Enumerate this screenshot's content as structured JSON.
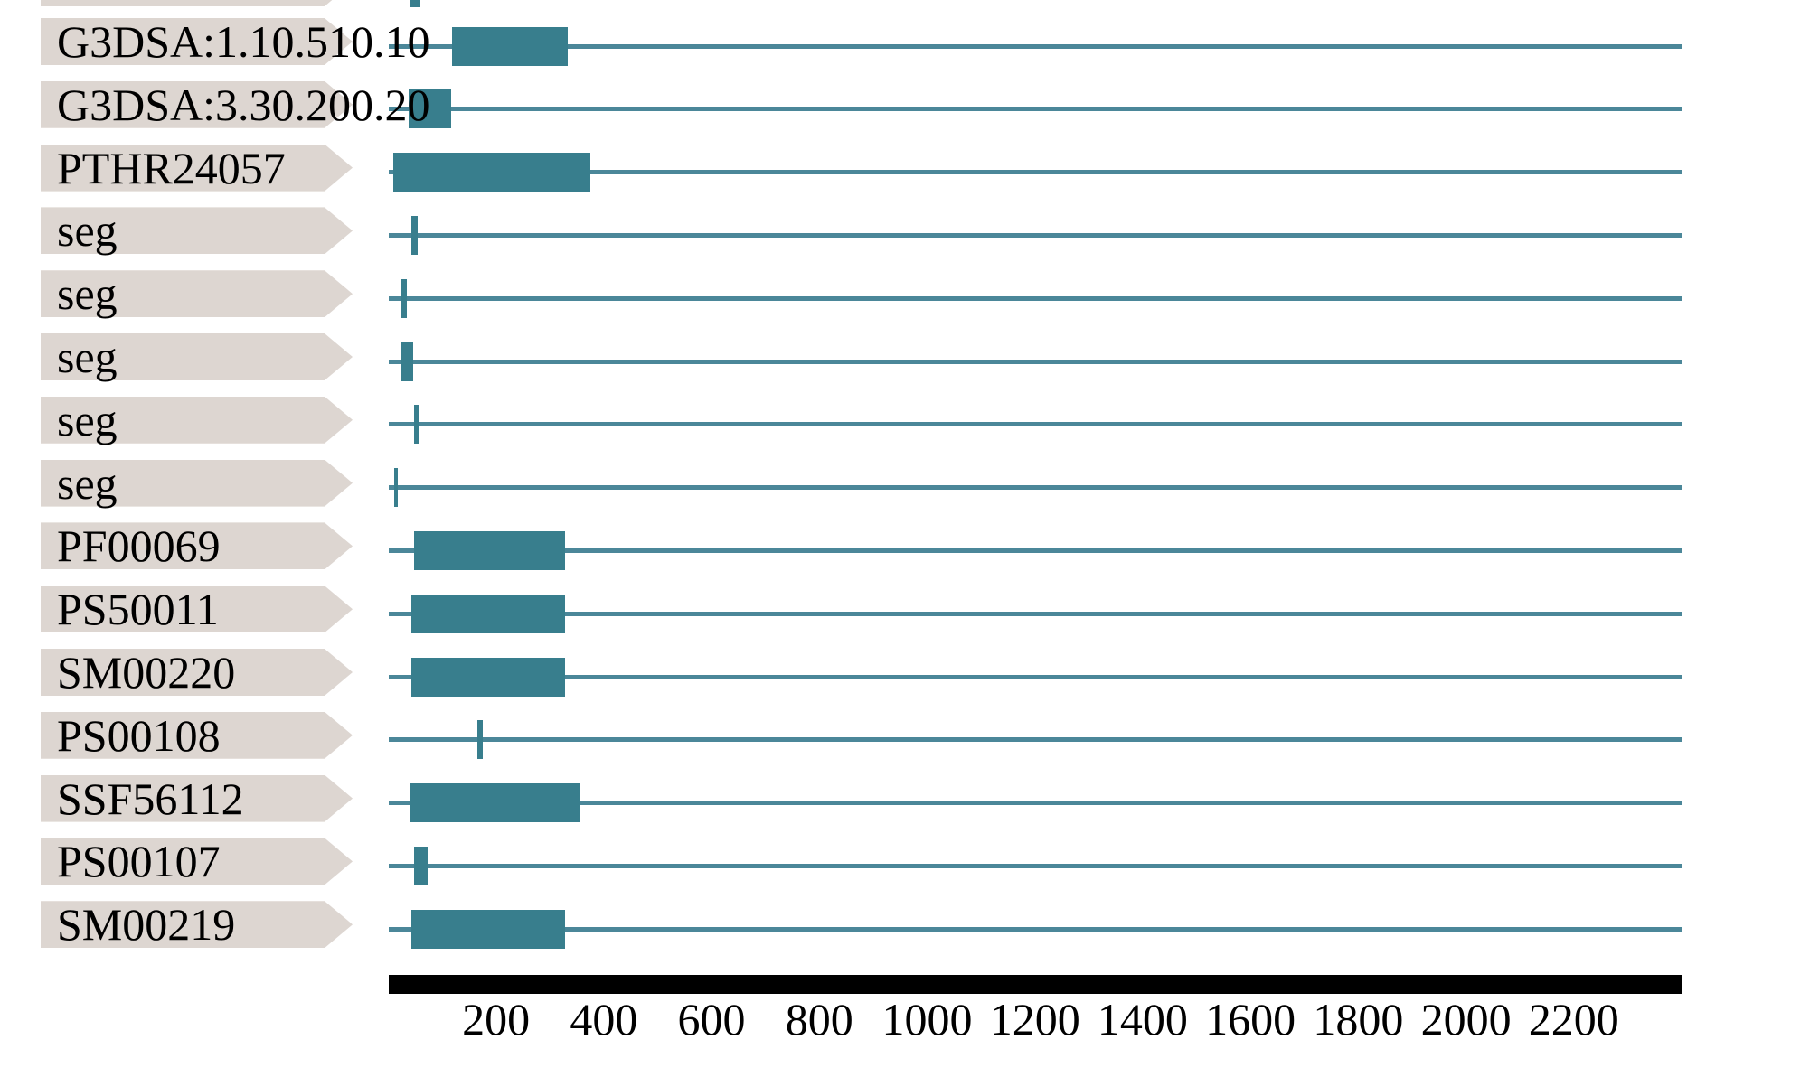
{
  "colors": {
    "background": "#ffffff",
    "feature-fill": "#387e8d",
    "line": "#4b8799",
    "label-bg": "#ddd6d1",
    "axis-bar": "#000000",
    "text": "#000000"
  },
  "chart_data": {
    "type": "bar",
    "variant": "protein-domain-architecture-tracks",
    "title": "",
    "xlabel": "",
    "legend": null,
    "grid": false,
    "x_axis": {
      "range": [
        1,
        2400
      ],
      "ticks": [
        200,
        400,
        600,
        800,
        1000,
        1200,
        1400,
        1600,
        1800,
        2000,
        2200
      ]
    },
    "rows": [
      {
        "label": "",
        "clipped": true,
        "features": [
          {
            "start": 40,
            "end": 60
          }
        ]
      },
      {
        "label": "G3DSA:1.10.510.10",
        "clipped": false,
        "features": [
          {
            "start": 118,
            "end": 333
          }
        ]
      },
      {
        "label": "G3DSA:3.30.200.20",
        "clipped": false,
        "features": [
          {
            "start": 38,
            "end": 117
          }
        ]
      },
      {
        "label": "PTHR24057",
        "clipped": false,
        "features": [
          {
            "start": 9,
            "end": 375
          }
        ]
      },
      {
        "label": "seg",
        "clipped": false,
        "features": [
          {
            "start": 43,
            "end": 55
          }
        ]
      },
      {
        "label": "seg",
        "clipped": false,
        "features": [
          {
            "start": 23,
            "end": 35
          }
        ]
      },
      {
        "label": "seg",
        "clipped": false,
        "features": [
          {
            "start": 24,
            "end": 46
          }
        ]
      },
      {
        "label": "seg",
        "clipped": false,
        "features": [
          {
            "start": 48,
            "end": 56
          }
        ]
      },
      {
        "label": "seg",
        "clipped": false,
        "features": [
          {
            "start": 11,
            "end": 18
          }
        ]
      },
      {
        "label": "PF00069",
        "clipped": false,
        "features": [
          {
            "start": 48,
            "end": 328
          }
        ]
      },
      {
        "label": "PS50011",
        "clipped": false,
        "features": [
          {
            "start": 43,
            "end": 328
          }
        ]
      },
      {
        "label": "SM00220",
        "clipped": false,
        "features": [
          {
            "start": 43,
            "end": 328
          }
        ]
      },
      {
        "label": "PS00108",
        "clipped": false,
        "features": [
          {
            "start": 165,
            "end": 175
          }
        ]
      },
      {
        "label": "SSF56112",
        "clipped": false,
        "features": [
          {
            "start": 41,
            "end": 357
          }
        ]
      },
      {
        "label": "PS00107",
        "clipped": false,
        "features": [
          {
            "start": 48,
            "end": 73
          }
        ]
      },
      {
        "label": "SM00219",
        "clipped": false,
        "features": [
          {
            "start": 43,
            "end": 328
          }
        ]
      }
    ]
  }
}
